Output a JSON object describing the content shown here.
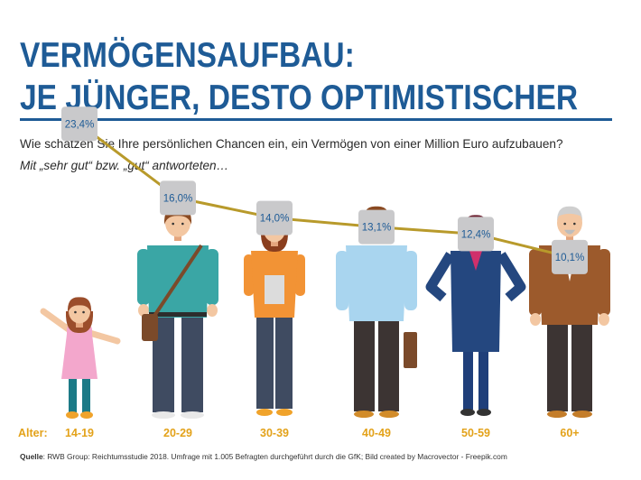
{
  "title": {
    "line1": "VERMÖGENSAUFBAU:",
    "line2": "JE JÜNGER, DESTO OPTIMISTISCHER"
  },
  "question": "Wie schätzen Sie Ihre persönlichen Chancen ein, ein Vermögen von einer Million Euro aufzubauen?",
  "answered_label": "Mit „sehr gut“ bzw. „gut“ antworteten…",
  "source": {
    "prefix": "Quelle",
    "text": ": RWB Group: Reichtumsstudie 2018. Umfrage mit 1.005 Befragten durchgeführt durch die GfK; Bild created by Macrovector - Freepik.com"
  },
  "colors": {
    "title": "#1e5b96",
    "line": "#b89a2b",
    "value_box": "#c9c9cb",
    "value_text": "#1e5b96",
    "category_text": "#e3a21a"
  },
  "icons": [
    "girl-figure-icon",
    "young-man-figure-icon",
    "woman-figure-icon",
    "man-glasses-figure-icon",
    "businesswoman-figure-icon",
    "senior-man-figure-icon"
  ],
  "chart_data": {
    "type": "line",
    "x_axis_prefix": "Alter:",
    "categories": [
      "14-19",
      "20-29",
      "30-39",
      "40-49",
      "50-59",
      "60+"
    ],
    "values": [
      23.4,
      16.0,
      14.0,
      13.1,
      12.4,
      10.1
    ],
    "value_labels": [
      "23,4%",
      "16,0%",
      "14,0%",
      "13,1%",
      "12,4%",
      "10,1%"
    ],
    "unit": "%",
    "grid": false,
    "legend": "none"
  }
}
